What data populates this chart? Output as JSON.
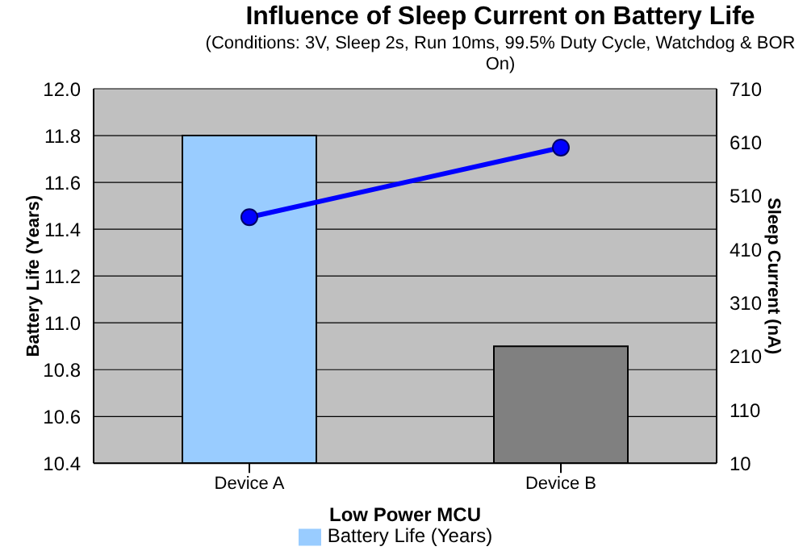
{
  "chart_data": {
    "type": "bar",
    "title": "Influence of Sleep Current on Battery Life",
    "subtitle": "(Conditions: 3V, Sleep 2s, Run 10ms, 99.5% Duty Cycle, Watchdog & BOR On)",
    "xlabel": "Low Power MCU",
    "ylabel": "Battery Life (Years)",
    "y2label": "Sleep Current (nA)",
    "categories": [
      "Device A",
      "Device B"
    ],
    "series": [
      {
        "name": "Battery Life (Years)",
        "colors": [
          "#99ccff",
          "#808080"
        ],
        "color": "#99ccff",
        "values": [
          11.8,
          10.9
        ]
      },
      {
        "type": "line",
        "axis": "y2",
        "color": "#0000ff",
        "marker": "circle",
        "values": [
          470,
          600
        ]
      }
    ],
    "ylim": [
      10.4,
      12.0
    ],
    "yticks": [
      {
        "value": 10.4,
        "label": "10.4"
      },
      {
        "value": 10.6,
        "label": "10.6"
      },
      {
        "value": 10.8,
        "label": "10.8"
      },
      {
        "value": 11,
        "label": "11.0"
      },
      {
        "value": 11.2,
        "label": "11.2"
      },
      {
        "value": 11.4,
        "label": "11.4"
      },
      {
        "value": 11.6,
        "label": "11.6"
      },
      {
        "value": 11.8,
        "label": "11.8"
      },
      {
        "value": 12,
        "label": "12.0"
      }
    ],
    "y2lim": [
      10,
      710
    ],
    "y2ticks": [
      10,
      110,
      210,
      310,
      410,
      510,
      610,
      710
    ],
    "grid": "y",
    "legend": "bottom"
  }
}
